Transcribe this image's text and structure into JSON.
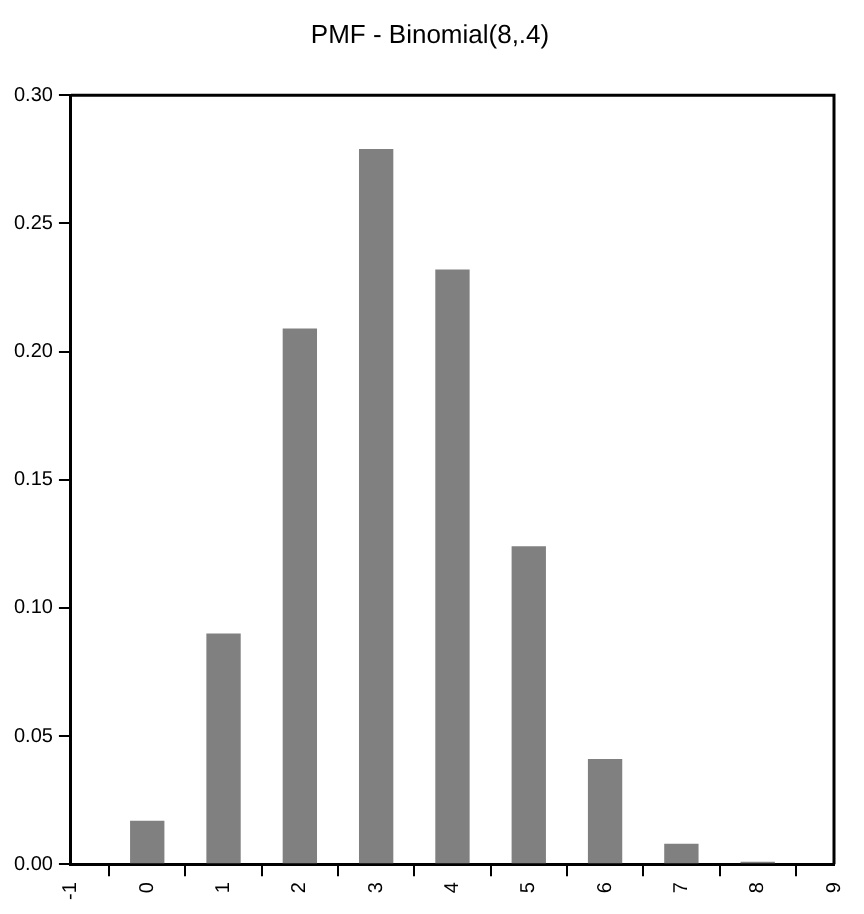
{
  "chart_data": {
    "type": "bar",
    "title": "PMF - Binomial(8,.4)",
    "x": [
      0,
      1,
      2,
      3,
      4,
      5,
      6,
      7,
      8
    ],
    "values": [
      0.017,
      0.09,
      0.209,
      0.279,
      0.232,
      0.124,
      0.041,
      0.008,
      0.001
    ],
    "color": "#808080",
    "xlim": [
      -1,
      9
    ],
    "xticks": [
      -1,
      0,
      1,
      2,
      3,
      4,
      5,
      6,
      7,
      8,
      9
    ],
    "ylim": [
      0,
      0.3
    ],
    "yticks": [
      {
        "value": 0,
        "label": "0.00"
      },
      0.05,
      {
        "value": 0.1,
        "label": "0.10"
      },
      0.15,
      {
        "value": 0.2,
        "label": "0.20"
      },
      0.25,
      {
        "value": 0.3,
        "label": "0.30"
      }
    ],
    "grid": false,
    "legend": false
  }
}
